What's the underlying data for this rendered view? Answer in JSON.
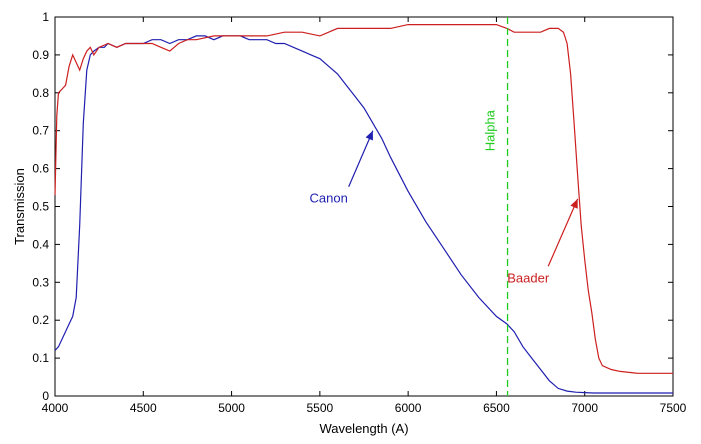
{
  "chart_data": {
    "type": "line",
    "title": "",
    "xlabel": "Wavelength (A)",
    "ylabel": "Transmission",
    "xlim": [
      4000,
      7500
    ],
    "ylim": [
      0,
      1
    ],
    "xticks": [
      "4000",
      "4500",
      "5000",
      "5500",
      "6000",
      "6500",
      "7000",
      "7500"
    ],
    "yticks": [
      "0",
      "0.1",
      "0.2",
      "0.3",
      "0.4",
      "0.5",
      "0.6",
      "0.7",
      "0.8",
      "0.9",
      "1"
    ],
    "grid": false,
    "legend": "none",
    "series": [
      {
        "name": "Canon",
        "color": "#1f1fb0",
        "x": [
          4000,
          4020,
          4050,
          4080,
          4100,
          4120,
          4140,
          4160,
          4180,
          4200,
          4220,
          4250,
          4280,
          4300,
          4350,
          4400,
          4450,
          4500,
          4550,
          4600,
          4650,
          4700,
          4750,
          4800,
          4850,
          4900,
          4950,
          5000,
          5050,
          5100,
          5150,
          5200,
          5250,
          5300,
          5350,
          5400,
          5450,
          5500,
          5550,
          5600,
          5650,
          5700,
          5750,
          5800,
          5850,
          5900,
          6000,
          6100,
          6200,
          6300,
          6400,
          6500,
          6560,
          6600,
          6650,
          6700,
          6750,
          6800,
          6850,
          6900,
          6950,
          7000,
          7050,
          7100,
          7200,
          7300,
          7400,
          7500
        ],
        "values": [
          0.12,
          0.13,
          0.16,
          0.19,
          0.21,
          0.26,
          0.45,
          0.72,
          0.86,
          0.9,
          0.91,
          0.92,
          0.92,
          0.93,
          0.92,
          0.93,
          0.93,
          0.93,
          0.94,
          0.94,
          0.93,
          0.94,
          0.94,
          0.95,
          0.95,
          0.94,
          0.95,
          0.95,
          0.95,
          0.94,
          0.94,
          0.94,
          0.93,
          0.93,
          0.92,
          0.91,
          0.9,
          0.89,
          0.87,
          0.85,
          0.82,
          0.79,
          0.76,
          0.72,
          0.68,
          0.63,
          0.54,
          0.46,
          0.39,
          0.32,
          0.26,
          0.21,
          0.19,
          0.17,
          0.13,
          0.1,
          0.07,
          0.04,
          0.02,
          0.013,
          0.01,
          0.009,
          0.008,
          0.008,
          0.008,
          0.008,
          0.008,
          0.008
        ]
      },
      {
        "name": "Baader",
        "color": "#cc1f1f",
        "x": [
          4000,
          4010,
          4020,
          4040,
          4060,
          4080,
          4100,
          4120,
          4140,
          4160,
          4180,
          4200,
          4220,
          4250,
          4300,
          4350,
          4400,
          4450,
          4500,
          4550,
          4600,
          4650,
          4700,
          4750,
          4800,
          4900,
          5000,
          5100,
          5200,
          5300,
          5400,
          5500,
          5600,
          5700,
          5800,
          5900,
          6000,
          6100,
          6200,
          6300,
          6400,
          6500,
          6560,
          6600,
          6650,
          6700,
          6750,
          6800,
          6850,
          6880,
          6900,
          6920,
          6940,
          6960,
          6980,
          7000,
          7020,
          7040,
          7060,
          7080,
          7100,
          7150,
          7200,
          7300,
          7400,
          7500
        ],
        "values": [
          0.53,
          0.74,
          0.8,
          0.81,
          0.82,
          0.87,
          0.9,
          0.88,
          0.86,
          0.89,
          0.91,
          0.92,
          0.9,
          0.92,
          0.93,
          0.92,
          0.93,
          0.93,
          0.93,
          0.93,
          0.92,
          0.91,
          0.93,
          0.94,
          0.94,
          0.95,
          0.95,
          0.95,
          0.95,
          0.96,
          0.96,
          0.95,
          0.97,
          0.97,
          0.97,
          0.97,
          0.98,
          0.98,
          0.98,
          0.98,
          0.98,
          0.98,
          0.97,
          0.96,
          0.96,
          0.96,
          0.96,
          0.97,
          0.97,
          0.96,
          0.93,
          0.85,
          0.72,
          0.58,
          0.45,
          0.36,
          0.28,
          0.22,
          0.15,
          0.1,
          0.08,
          0.07,
          0.065,
          0.06,
          0.06,
          0.06
        ]
      }
    ],
    "reference_line": {
      "label": "Halpha",
      "x": 6563,
      "color": "#1fcc1f"
    },
    "annotations": [
      {
        "text": "Canon",
        "color": "#1f1fb0",
        "text_x": 5550,
        "text_y": 0.51,
        "arrow_to_x": 5800,
        "arrow_to_y": 0.7
      },
      {
        "text": "Baader",
        "color": "#cc1f1f",
        "text_x": 6680,
        "text_y": 0.3,
        "arrow_to_x": 6960,
        "arrow_to_y": 0.52
      }
    ]
  }
}
